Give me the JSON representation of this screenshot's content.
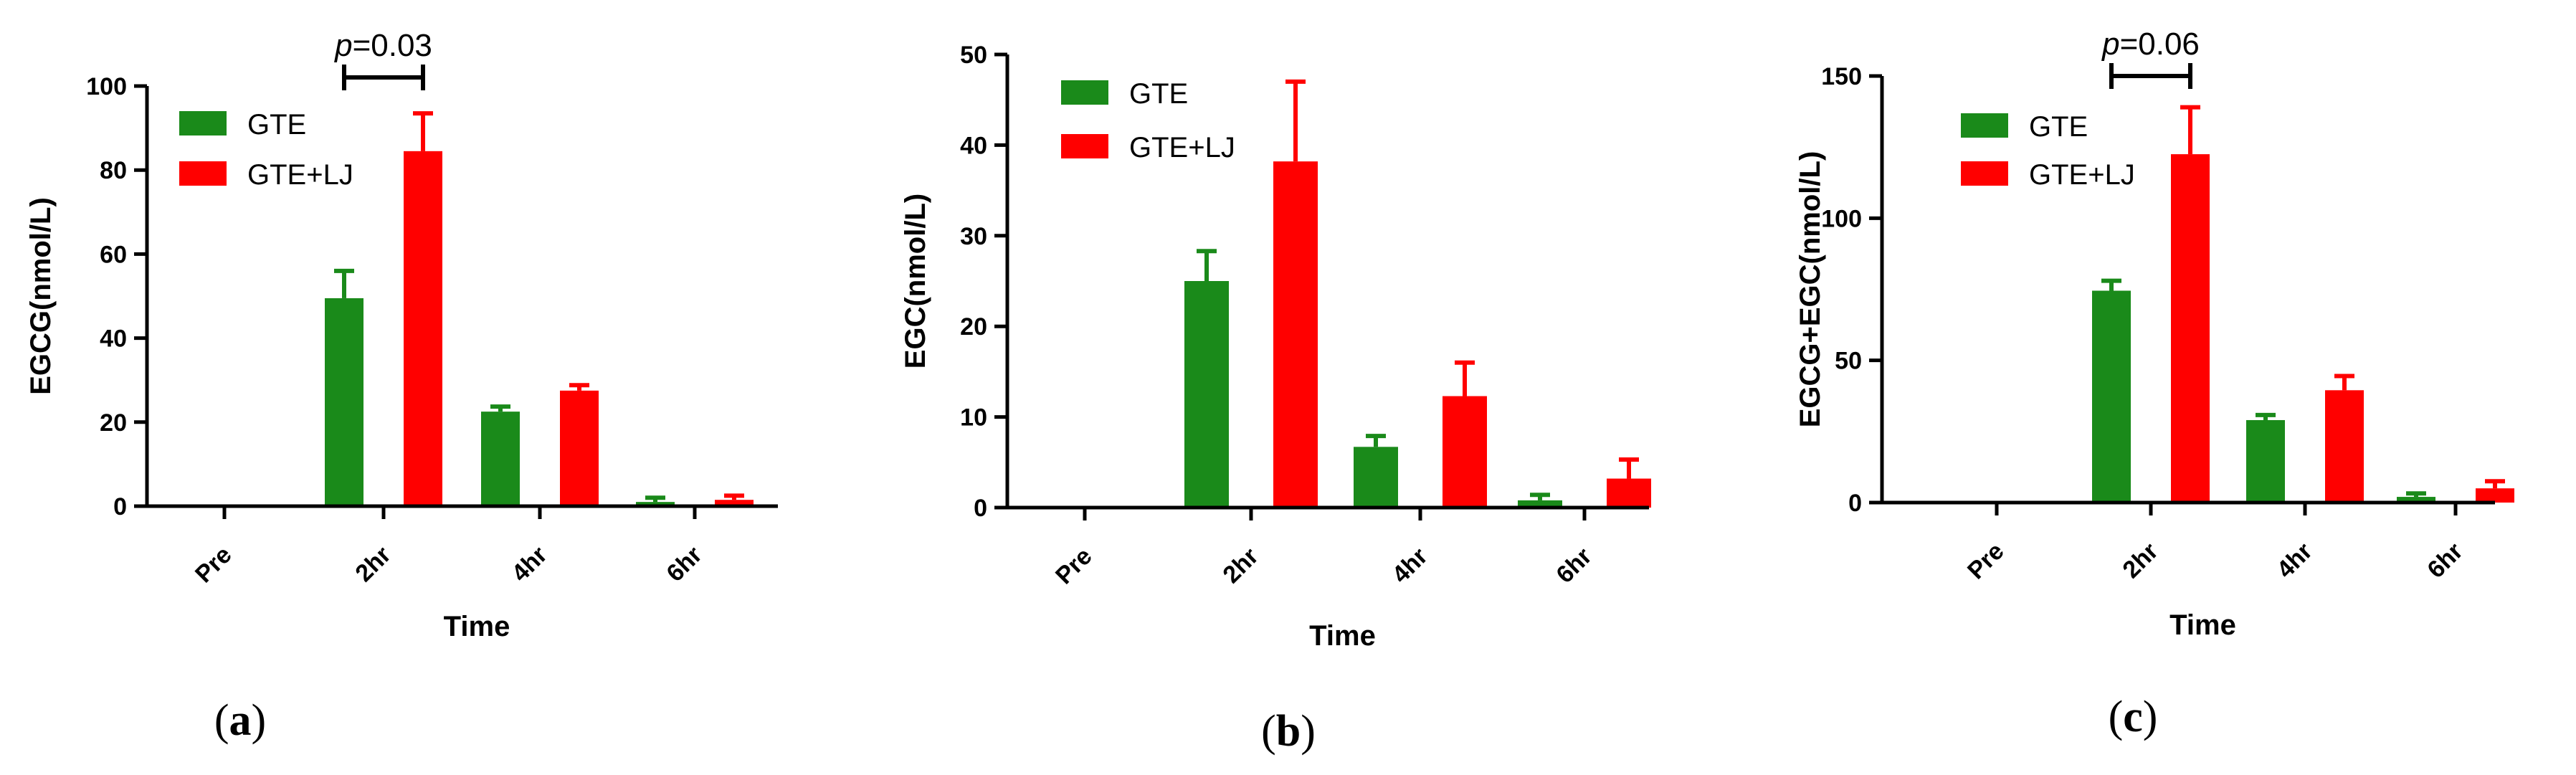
{
  "colors": {
    "GTE": "#1a8a1a",
    "GTE+LJ": "#ff0000",
    "axis": "#000000"
  },
  "chart_data": [
    {
      "panel": "(a)",
      "type": "bar",
      "title": "",
      "xlabel": "Time",
      "ylabel": "EGCG(nmol/L)",
      "ylim": [
        0,
        100
      ],
      "yticks": [
        "0",
        "20",
        "40",
        "60",
        "80",
        "100"
      ],
      "categories": [
        "Pre",
        "2hr",
        "4hr",
        "6hr"
      ],
      "series": [
        {
          "name": "GTE",
          "values": [
            0,
            49.5,
            22.5,
            1
          ],
          "errors": [
            0,
            6.5,
            1.2,
            1
          ]
        },
        {
          "name": "GTE+LJ",
          "values": [
            0,
            84.5,
            27.5,
            1.5
          ],
          "errors": [
            0,
            9,
            1.3,
            1
          ]
        }
      ],
      "annotation": {
        "text": "=0.03",
        "prefix": "p",
        "category": "2hr"
      }
    },
    {
      "panel": "(b)",
      "type": "bar",
      "title": "",
      "xlabel": "Time",
      "ylabel": "EGC(nmol/L)",
      "ylim": [
        0,
        50
      ],
      "yticks": [
        "0",
        "10",
        "20",
        "30",
        "40",
        "50"
      ],
      "categories": [
        "Pre",
        "2hr",
        "4hr",
        "6hr"
      ],
      "series": [
        {
          "name": "GTE",
          "values": [
            0,
            25,
            6.7,
            0.8
          ],
          "errors": [
            0,
            3.3,
            1.2,
            0.6
          ]
        },
        {
          "name": "GTE+LJ",
          "values": [
            0,
            38.2,
            12.3,
            3.2
          ],
          "errors": [
            0,
            8.8,
            3.7,
            2.1
          ]
        }
      ],
      "annotation": null
    },
    {
      "panel": "(c)",
      "type": "bar",
      "title": "",
      "xlabel": "Time",
      "ylabel": "EGCG+EGC(nmol/L)",
      "ylim": [
        0,
        150
      ],
      "yticks": [
        "0",
        "50",
        "100",
        "150"
      ],
      "categories": [
        "Pre",
        "2hr",
        "4hr",
        "6hr"
      ],
      "series": [
        {
          "name": "GTE",
          "values": [
            0,
            74.5,
            29,
            2
          ],
          "errors": [
            0,
            3.5,
            1.8,
            1.2
          ]
        },
        {
          "name": "GTE+LJ",
          "values": [
            0,
            122.5,
            39.5,
            5
          ],
          "errors": [
            0,
            16.5,
            5,
            2.5
          ]
        }
      ],
      "annotation": {
        "text": "=0.06",
        "prefix": "p",
        "category": "2hr"
      }
    }
  ]
}
